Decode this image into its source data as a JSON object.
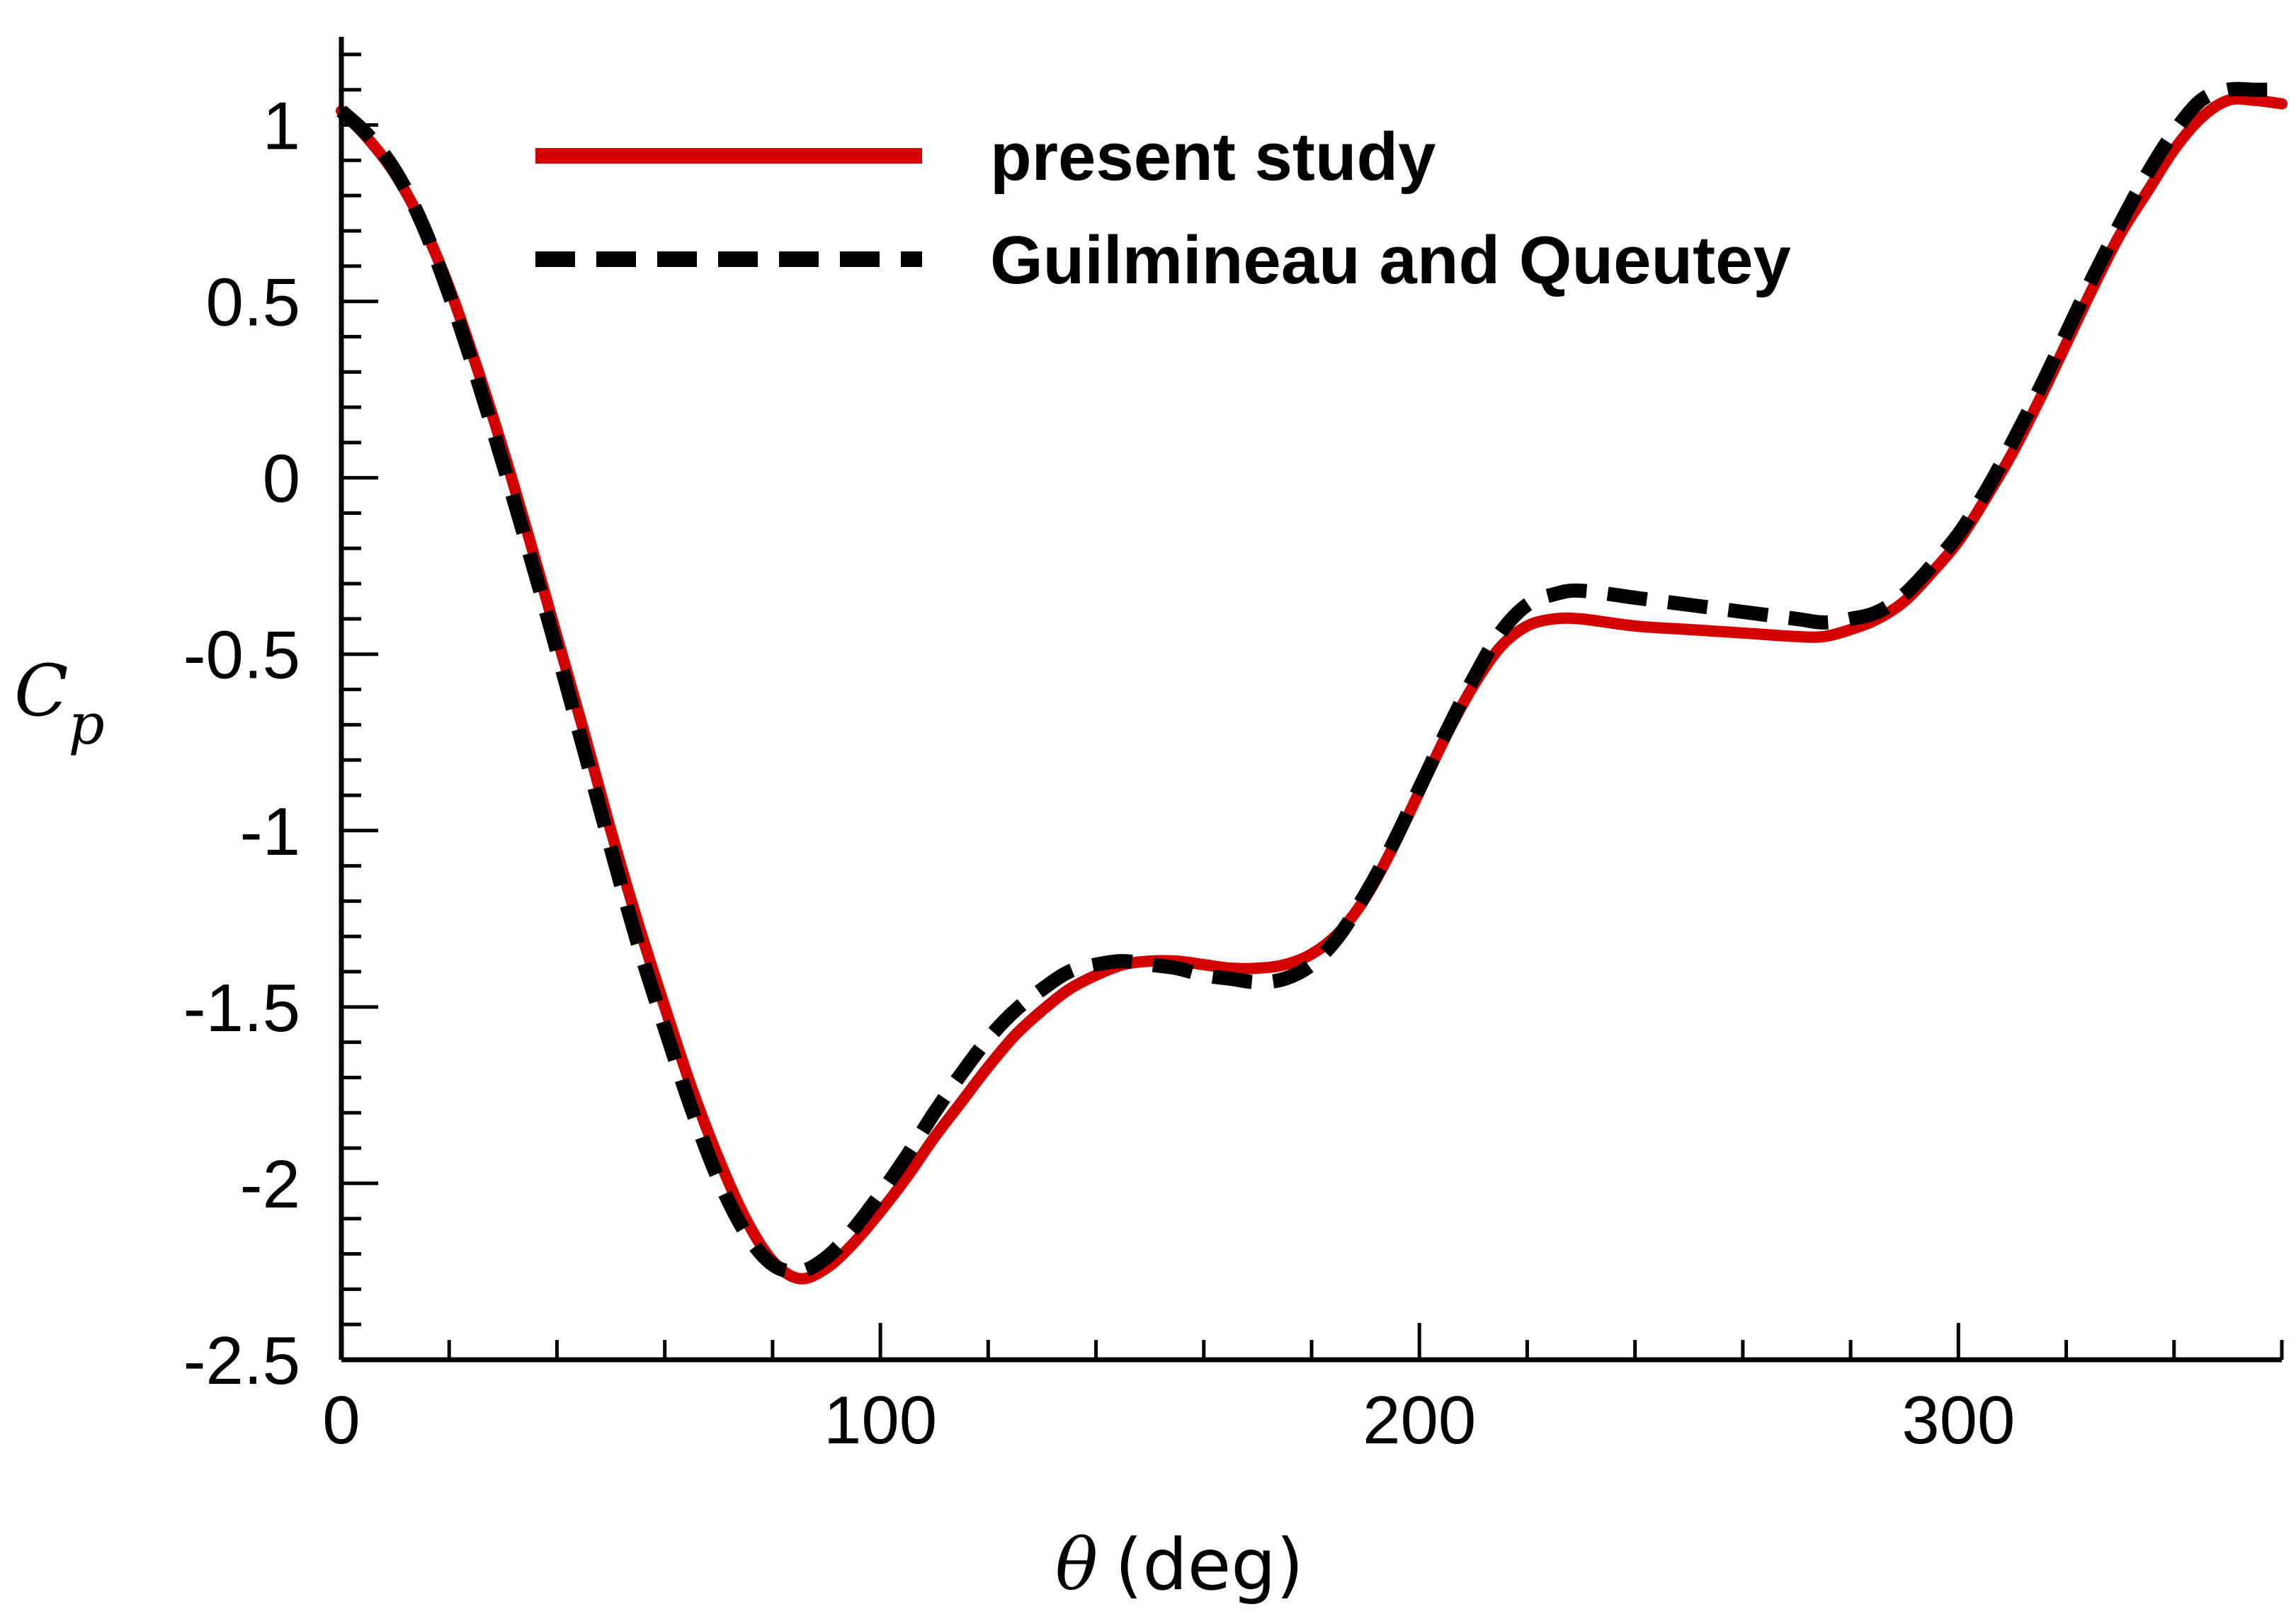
{
  "chart_data": {
    "type": "line",
    "title": "",
    "xlabel": "θ (deg)",
    "xlabel_symbol": "θ",
    "xlabel_unit": "(deg)",
    "ylabel_base": "C",
    "ylabel_sub": "p",
    "xlim": [
      0,
      360
    ],
    "ylim": [
      -2.5,
      1.25
    ],
    "xticks": [
      0,
      100,
      200,
      300
    ],
    "xtick_labels": [
      "0",
      "100",
      "200",
      "300"
    ],
    "yticks": [
      1,
      0.5,
      0,
      -0.5,
      -1,
      -1.5,
      -2,
      -2.5
    ],
    "ytick_labels": [
      "1",
      "0.5",
      "0",
      "-0.5",
      "-1",
      "-1.5",
      "-2",
      "-2.5"
    ],
    "grid": false,
    "legend_position": "top",
    "series": [
      {
        "name": "present study",
        "color": "#d40000",
        "style": "solid",
        "x": [
          0,
          5,
          10,
          15,
          20,
          25,
          30,
          35,
          40,
          45,
          50,
          55,
          60,
          65,
          70,
          75,
          80,
          85,
          90,
          95,
          100,
          105,
          110,
          115,
          120,
          125,
          130,
          135,
          140,
          145,
          150,
          155,
          160,
          165,
          170,
          175,
          180,
          185,
          190,
          195,
          200,
          205,
          210,
          215,
          220,
          225,
          230,
          240,
          250,
          260,
          270,
          275,
          280,
          285,
          290,
          295,
          300,
          305,
          310,
          315,
          320,
          325,
          330,
          335,
          340,
          345,
          350,
          355,
          360
        ],
        "y": [
          1.04,
          0.96,
          0.86,
          0.72,
          0.54,
          0.32,
          0.08,
          -0.18,
          -0.45,
          -0.72,
          -1.0,
          -1.26,
          -1.5,
          -1.73,
          -1.93,
          -2.1,
          -2.22,
          -2.27,
          -2.24,
          -2.17,
          -2.08,
          -1.98,
          -1.87,
          -1.77,
          -1.67,
          -1.58,
          -1.51,
          -1.45,
          -1.41,
          -1.38,
          -1.37,
          -1.37,
          -1.38,
          -1.39,
          -1.39,
          -1.38,
          -1.35,
          -1.29,
          -1.19,
          -1.05,
          -0.89,
          -0.73,
          -0.59,
          -0.48,
          -0.42,
          -0.4,
          -0.4,
          -0.42,
          -0.43,
          -0.44,
          -0.45,
          -0.45,
          -0.43,
          -0.4,
          -0.35,
          -0.27,
          -0.18,
          -0.06,
          0.07,
          0.22,
          0.38,
          0.54,
          0.69,
          0.81,
          0.93,
          1.02,
          1.07,
          1.07,
          1.06
        ]
      },
      {
        "name": "Guilmineau and Queutey",
        "color": "#000000",
        "style": "dashed",
        "x": [
          0,
          5,
          10,
          15,
          20,
          25,
          30,
          35,
          40,
          45,
          50,
          55,
          60,
          65,
          70,
          75,
          80,
          85,
          90,
          95,
          100,
          105,
          110,
          115,
          120,
          125,
          130,
          135,
          140,
          145,
          150,
          155,
          160,
          165,
          170,
          175,
          180,
          185,
          190,
          195,
          200,
          205,
          210,
          215,
          220,
          225,
          230,
          240,
          250,
          260,
          270,
          275,
          280,
          285,
          290,
          295,
          300,
          305,
          310,
          315,
          320,
          325,
          330,
          335,
          340,
          345,
          350,
          355,
          360
        ],
        "y": [
          1.04,
          0.97,
          0.87,
          0.72,
          0.52,
          0.29,
          0.04,
          -0.22,
          -0.49,
          -0.77,
          -1.05,
          -1.32,
          -1.56,
          -1.79,
          -1.99,
          -2.14,
          -2.23,
          -2.25,
          -2.21,
          -2.13,
          -2.03,
          -1.92,
          -1.8,
          -1.69,
          -1.59,
          -1.51,
          -1.45,
          -1.4,
          -1.38,
          -1.37,
          -1.38,
          -1.39,
          -1.41,
          -1.42,
          -1.43,
          -1.42,
          -1.38,
          -1.3,
          -1.18,
          -1.04,
          -0.88,
          -0.72,
          -0.57,
          -0.44,
          -0.36,
          -0.33,
          -0.32,
          -0.34,
          -0.36,
          -0.38,
          -0.4,
          -0.41,
          -0.4,
          -0.38,
          -0.33,
          -0.25,
          -0.16,
          -0.04,
          0.1,
          0.25,
          0.41,
          0.57,
          0.72,
          0.86,
          0.98,
          1.07,
          1.1,
          1.1,
          1.1
        ]
      }
    ]
  }
}
